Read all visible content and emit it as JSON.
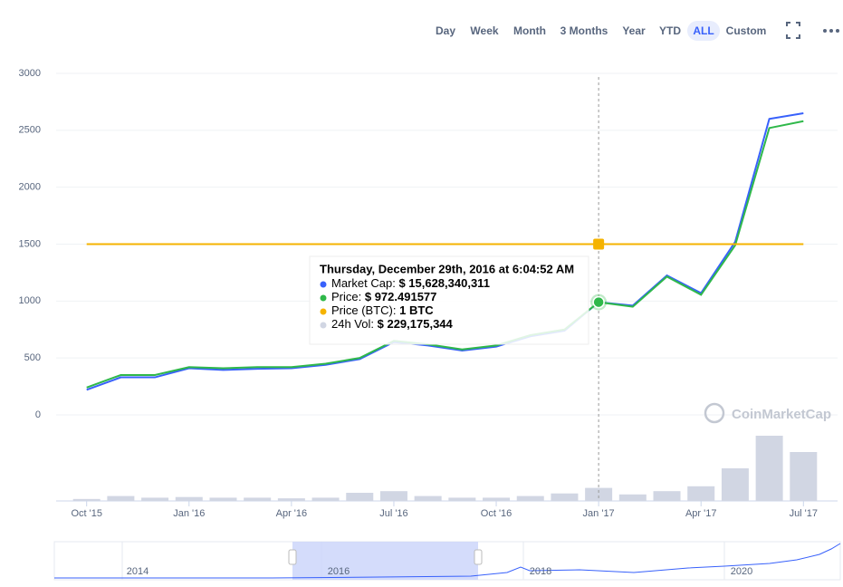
{
  "range_buttons": [
    "Day",
    "Week",
    "Month",
    "3 Months",
    "Year",
    "YTD",
    "ALL",
    "Custom"
  ],
  "selected_range": "ALL",
  "chart_data": {
    "type": "line",
    "x": [
      "2015-10",
      "2015-11",
      "2015-12",
      "2016-01",
      "2016-02",
      "2016-03",
      "2016-04",
      "2016-05",
      "2016-06",
      "2016-07",
      "2016-08",
      "2016-09",
      "2016-10",
      "2016-11",
      "2016-12",
      "2017-01",
      "2017-02",
      "2017-03",
      "2017-04",
      "2017-05",
      "2017-06",
      "2017-07"
    ],
    "xlim": [
      "2015-09",
      "2017-08"
    ],
    "xticks": [
      {
        "value": "2015-10",
        "label": "Oct '15"
      },
      {
        "value": "2016-01",
        "label": "Jan '16"
      },
      {
        "value": "2016-04",
        "label": "Apr '16"
      },
      {
        "value": "2016-07",
        "label": "Jul '16"
      },
      {
        "value": "2016-10",
        "label": "Oct '16"
      },
      {
        "value": "2017-01",
        "label": "Jan '17"
      },
      {
        "value": "2017-04",
        "label": "Apr '17"
      },
      {
        "value": "2017-07",
        "label": "Jul '17"
      }
    ],
    "ylim": [
      0,
      3000
    ],
    "yticks": [
      0,
      500,
      1000,
      1500,
      2000,
      2500,
      3000
    ],
    "y2lim": [
      0,
      2500000000
    ],
    "grid": true,
    "series": [
      {
        "color": "#3861fb",
        "values": [
          220,
          330,
          330,
          410,
          395,
          405,
          410,
          440,
          490,
          640,
          610,
          565,
          600,
          690,
          740,
          990,
          960,
          1225,
          1070,
          1520,
          2600,
          2650
        ]
      },
      {
        "color": "#2fb84a",
        "values": [
          240,
          350,
          350,
          420,
          410,
          420,
          420,
          450,
          500,
          650,
          620,
          575,
          610,
          700,
          750,
          990,
          950,
          1215,
          1055,
          1490,
          2520,
          2580
        ]
      },
      {
        "color": "#f5b300",
        "values": [
          1500,
          1500,
          1500,
          1500,
          1500,
          1500,
          1500,
          1500,
          1500,
          1500,
          1500,
          1500,
          1500,
          1500,
          1500,
          1500,
          1500,
          1500,
          1500,
          1500,
          1500,
          1500
        ]
      },
      {
        "color": "#d1d6e3",
        "axis": "y2",
        "type": "bar",
        "values": [
          60000000,
          150000000,
          100000000,
          120000000,
          100000000,
          100000000,
          80000000,
          100000000,
          250000000,
          300000000,
          150000000,
          100000000,
          100000000,
          150000000,
          230000000,
          400000000,
          200000000,
          300000000,
          450000000,
          1000000000,
          2000000000,
          1500000000
        ]
      }
    ],
    "hover_index": 15,
    "tooltip": {
      "title": "Thursday, December 29th, 2016 at 6:04:52 AM",
      "items": [
        {
          "label": "Market Cap:",
          "value": "$ 15,628,340,311"
        },
        {
          "label": "Price:",
          "value": "$ 972.491577"
        },
        {
          "label": "Price (BTC):",
          "value": "1 BTC"
        },
        {
          "label": "24h Vol:",
          "value": "$ 229,175,344"
        }
      ]
    },
    "watermark": "CoinMarketCap"
  },
  "navigator": {
    "labels": [
      "2014",
      "2016",
      "2018",
      "2020"
    ]
  }
}
